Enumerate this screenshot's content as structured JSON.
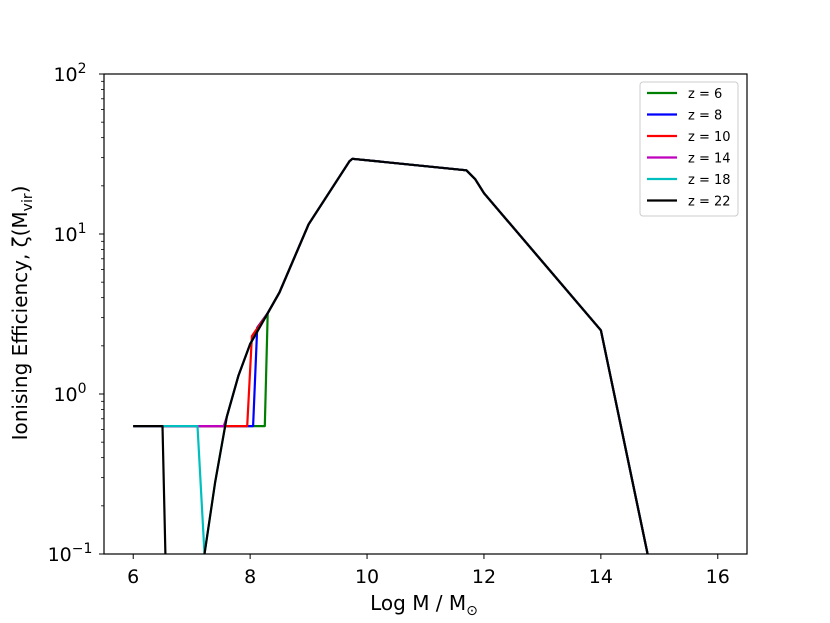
{
  "chart_data": {
    "type": "line",
    "title": "",
    "xlabel": "Log M / M",
    "xlabel_sub": "⊙",
    "ylabel": "Ionising Efficiency, ζ(M",
    "ylabel_sub": "vir",
    "ylabel_close": ")",
    "xlim": [
      5.5,
      16.5
    ],
    "ylim": [
      0.1,
      100
    ],
    "yscale": "log",
    "grid": false,
    "legend_position": "top-right",
    "x_ticks": [
      {
        "value": 6,
        "label": "6"
      },
      {
        "value": 8,
        "label": "8"
      },
      {
        "value": 10,
        "label": "10"
      },
      {
        "value": 12,
        "label": "12"
      },
      {
        "value": 14,
        "label": "14"
      },
      {
        "value": 16,
        "label": "16"
      }
    ],
    "y_ticks": [
      {
        "value": 0.1,
        "base": "10",
        "exp": "−1"
      },
      {
        "value": 1,
        "base": "10",
        "exp": "0"
      },
      {
        "value": 10,
        "base": "10",
        "exp": "1"
      },
      {
        "value": 100,
        "base": "10",
        "exp": "2"
      }
    ],
    "series": [
      {
        "name": "z = 6",
        "color": "#008000",
        "points": [
          [
            6.0,
            0.63
          ],
          [
            8.25,
            0.63
          ],
          [
            8.3,
            3.2
          ],
          [
            8.5,
            4.3
          ],
          [
            9.0,
            11.5
          ],
          [
            9.7,
            28.5
          ],
          [
            9.75,
            29.5
          ],
          [
            11.7,
            25
          ],
          [
            11.85,
            22
          ],
          [
            12.0,
            18
          ],
          [
            14.0,
            2.5
          ],
          [
            14.8,
            0.1
          ]
        ]
      },
      {
        "name": "z = 8",
        "color": "#0000ff",
        "points": [
          [
            6.0,
            0.63
          ],
          [
            8.05,
            0.63
          ],
          [
            8.12,
            2.6
          ],
          [
            8.3,
            3.2
          ],
          [
            8.5,
            4.3
          ],
          [
            9.0,
            11.5
          ],
          [
            9.7,
            28.5
          ],
          [
            9.75,
            29.5
          ],
          [
            11.7,
            25
          ],
          [
            11.85,
            22
          ],
          [
            12.0,
            18
          ],
          [
            14.0,
            2.5
          ],
          [
            14.8,
            0.1
          ]
        ]
      },
      {
        "name": "z = 10",
        "color": "#ff0000",
        "points": [
          [
            6.0,
            0.63
          ],
          [
            7.95,
            0.63
          ],
          [
            8.03,
            2.3
          ],
          [
            8.3,
            3.2
          ],
          [
            8.5,
            4.3
          ],
          [
            9.0,
            11.5
          ],
          [
            9.7,
            28.5
          ],
          [
            9.75,
            29.5
          ],
          [
            11.7,
            25
          ],
          [
            11.85,
            22
          ],
          [
            12.0,
            18
          ],
          [
            14.0,
            2.5
          ],
          [
            14.8,
            0.1
          ]
        ]
      },
      {
        "name": "z = 14",
        "color": "#bf00bf",
        "points": [
          [
            6.0,
            0.63
          ],
          [
            7.55,
            0.63
          ],
          [
            7.6,
            0.72
          ],
          [
            7.8,
            1.3
          ],
          [
            8.0,
            2.05
          ],
          [
            8.3,
            3.2
          ],
          [
            8.5,
            4.3
          ],
          [
            9.0,
            11.5
          ],
          [
            9.7,
            28.5
          ],
          [
            9.75,
            29.5
          ],
          [
            11.7,
            25
          ],
          [
            11.85,
            22
          ],
          [
            12.0,
            18
          ],
          [
            14.0,
            2.5
          ],
          [
            14.8,
            0.1
          ]
        ]
      },
      {
        "name": "z = 18",
        "color": "#00bfbf",
        "points": [
          [
            6.0,
            0.63
          ],
          [
            7.1,
            0.63
          ],
          [
            7.22,
            0.1
          ],
          [
            7.22,
            0.1
          ],
          [
            7.4,
            0.28
          ],
          [
            7.6,
            0.72
          ],
          [
            7.8,
            1.3
          ],
          [
            8.0,
            2.05
          ],
          [
            8.3,
            3.2
          ],
          [
            8.5,
            4.3
          ],
          [
            9.0,
            11.5
          ],
          [
            9.7,
            28.5
          ],
          [
            9.75,
            29.5
          ],
          [
            11.7,
            25
          ],
          [
            11.85,
            22
          ],
          [
            12.0,
            18
          ],
          [
            14.0,
            2.5
          ],
          [
            14.8,
            0.1
          ]
        ]
      },
      {
        "name": "z = 22",
        "color": "#000000",
        "points": [
          [
            6.0,
            0.63
          ],
          [
            6.5,
            0.63
          ],
          [
            6.55,
            0.1
          ]
        ],
        "extra": [
          [
            7.22,
            0.1
          ],
          [
            7.4,
            0.28
          ],
          [
            7.6,
            0.72
          ],
          [
            7.8,
            1.3
          ],
          [
            8.0,
            2.05
          ],
          [
            8.3,
            3.2
          ],
          [
            8.5,
            4.3
          ],
          [
            9.0,
            11.5
          ],
          [
            9.7,
            28.5
          ],
          [
            9.75,
            29.5
          ],
          [
            11.7,
            25
          ],
          [
            11.85,
            22
          ],
          [
            12.0,
            18
          ],
          [
            14.0,
            2.5
          ],
          [
            14.8,
            0.1
          ]
        ]
      }
    ]
  }
}
